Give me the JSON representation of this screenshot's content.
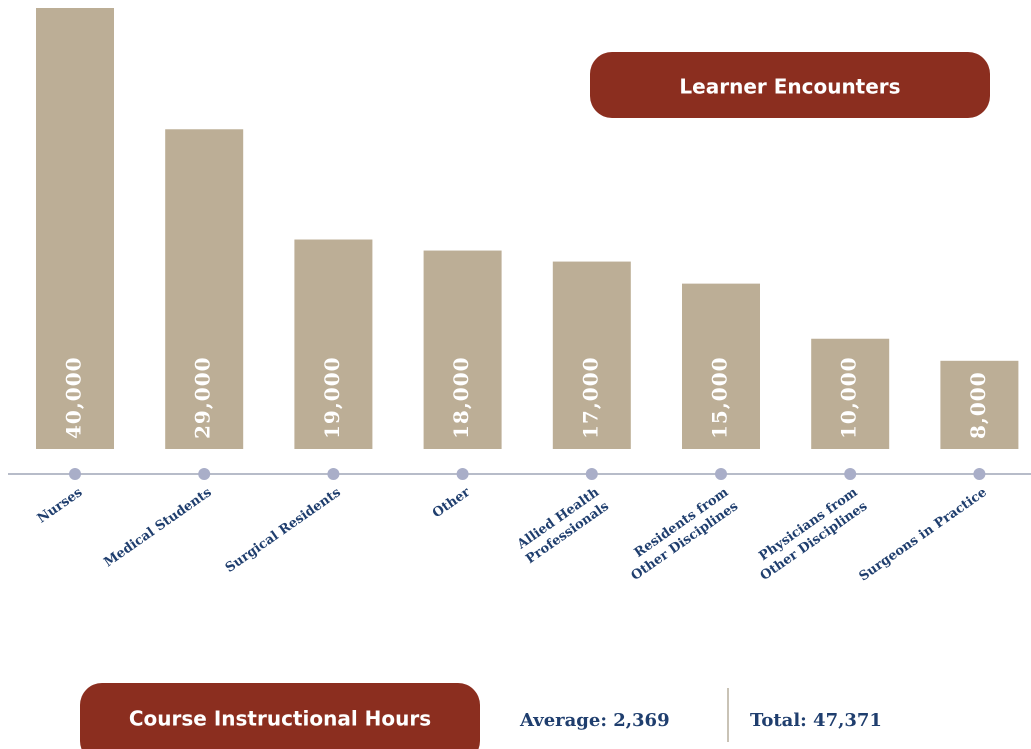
{
  "chart_data": {
    "type": "bar",
    "title": "Learner Encounters",
    "categories": [
      "Nurses",
      "Medical Students",
      "Surgical Residents",
      "Other",
      "Allied Health\nProfessionals",
      "Residents from\nOther Disciplines",
      "Physicians from\nOther Disciplines",
      "Surgeons in Practice"
    ],
    "values": [
      40000,
      29000,
      19000,
      18000,
      17000,
      15000,
      10000,
      8000
    ],
    "value_labels": [
      "40,000",
      "29,000",
      "19,000",
      "18,000",
      "17,000",
      "15,000",
      "10,000",
      "8,000"
    ],
    "color": "#bcae96",
    "ylim": [
      0,
      40000
    ]
  },
  "footer": {
    "title": "Course Instructional Hours",
    "average": "Average: 2,369",
    "total": "Total: 47,371"
  }
}
